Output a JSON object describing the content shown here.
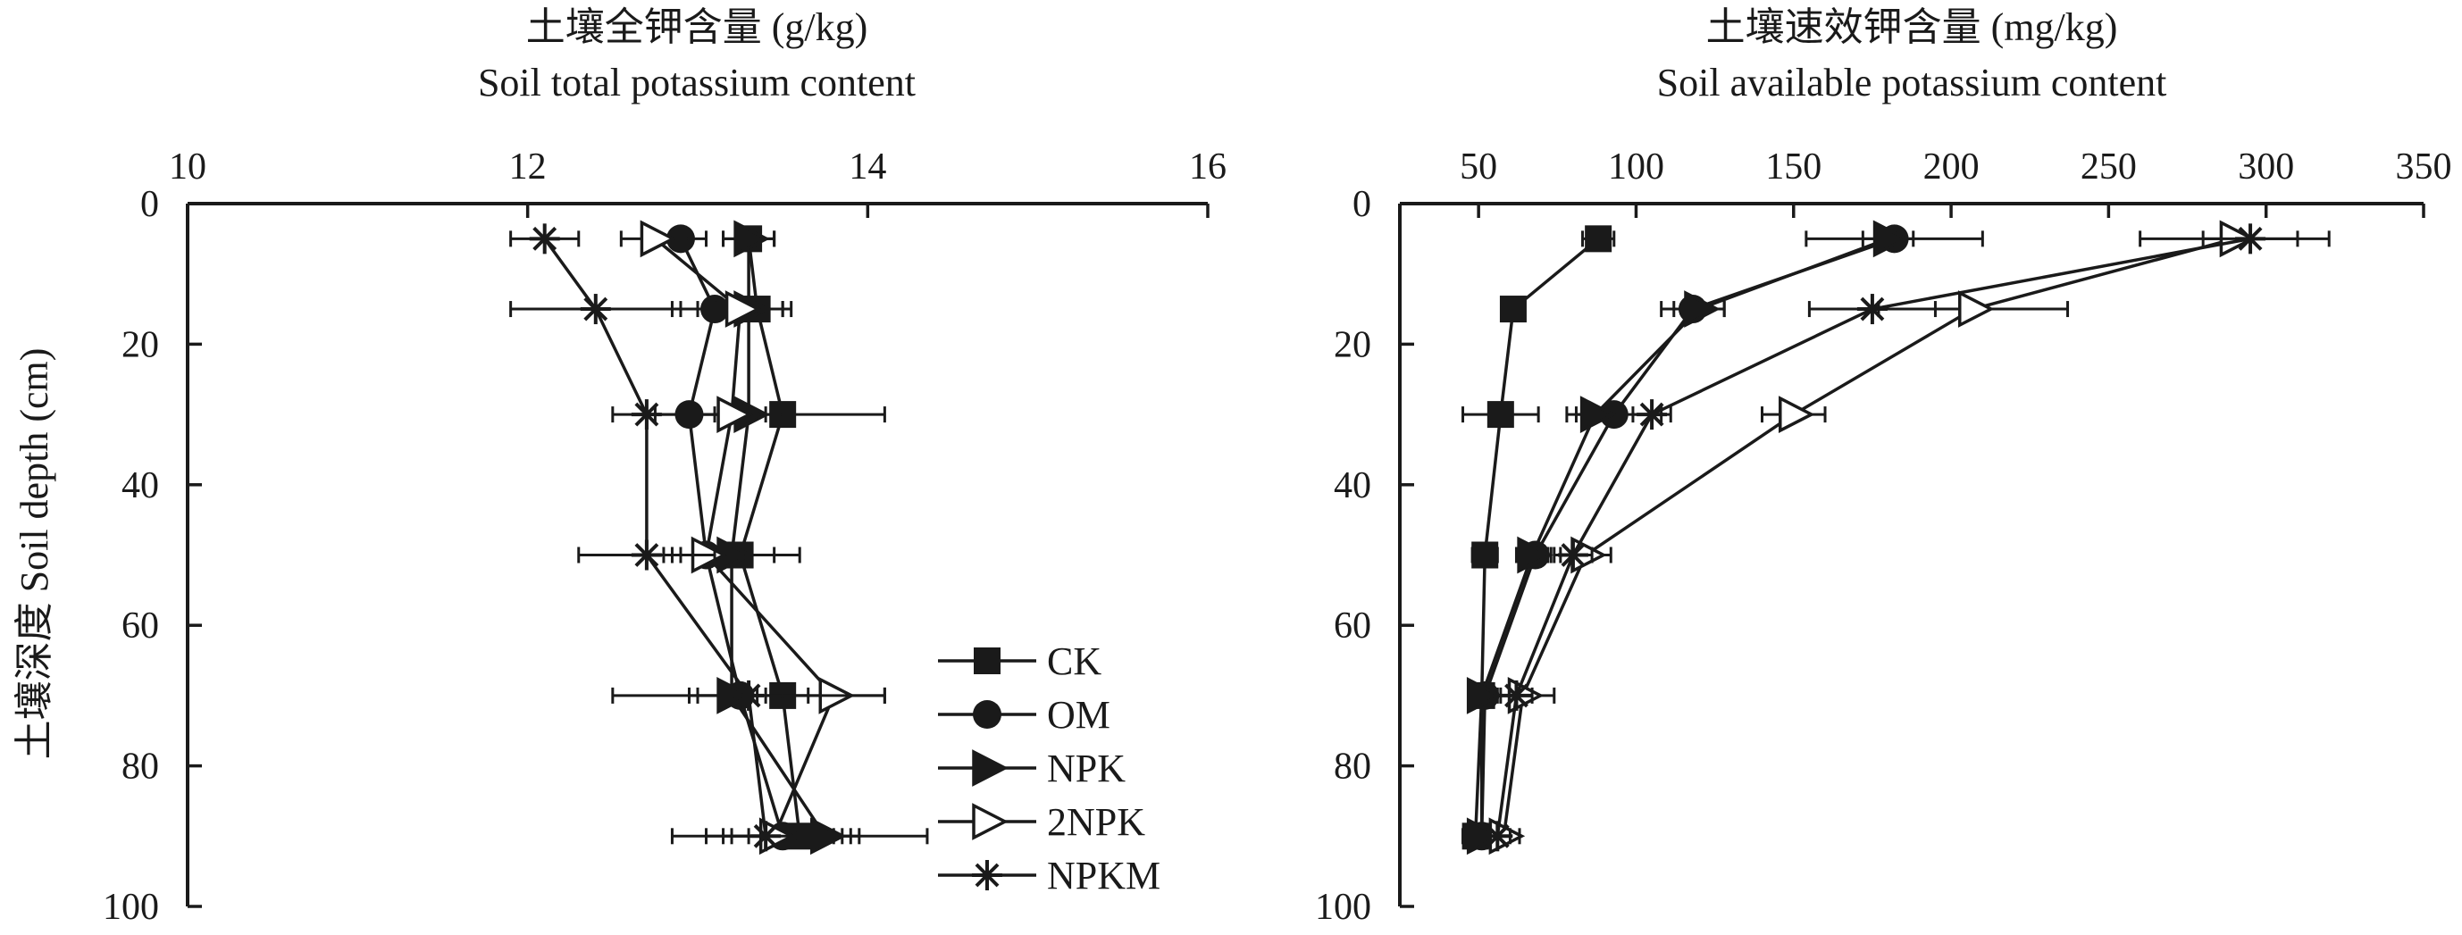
{
  "chart_data": [
    {
      "type": "line",
      "title_cn": "土壤全钾含量 (g/kg)",
      "title_en": "Soil total potassium content",
      "ylabel": "土壤深度 Soil depth (cm)",
      "xlim": [
        10,
        16
      ],
      "ylim": [
        0,
        100
      ],
      "y_inverted": true,
      "x_position": "top",
      "xticks": [
        10,
        12,
        14,
        16
      ],
      "yticks": [
        0,
        20,
        40,
        60,
        80,
        100
      ],
      "depths": [
        5,
        15,
        30,
        50,
        70,
        90
      ],
      "legend": {
        "placement": "bottom-right",
        "entries": [
          "CK",
          "OM",
          "NPK",
          "2NPK",
          "NPKM"
        ]
      },
      "series": [
        {
          "name": "CK",
          "marker": "square",
          "x": [
            13.3,
            13.35,
            13.5,
            13.25,
            13.5,
            13.6
          ],
          "err": [
            0.15,
            0.2,
            0.6,
            0.2,
            0.15,
            0.3
          ]
        },
        {
          "name": "OM",
          "marker": "circle",
          "x": [
            12.9,
            13.1,
            12.95,
            13.05,
            13.25,
            13.5
          ],
          "err": [
            0.15,
            0.25,
            0.2,
            0.2,
            0.3,
            0.3
          ]
        },
        {
          "name": "NPK",
          "marker": "triangle-right",
          "x": [
            13.3,
            13.3,
            13.3,
            13.2,
            13.2,
            13.75
          ],
          "err": [
            0.15,
            0.2,
            0.2,
            0.4,
            0.2,
            0.6
          ]
        },
        {
          "name": "2NPK",
          "marker": "triangle-right-open",
          "x": [
            12.75,
            13.25,
            13.2,
            13.05,
            13.8,
            13.45
          ],
          "err": [
            0.2,
            0.25,
            0.2,
            0.15,
            0.3,
            0.4
          ]
        },
        {
          "name": "NPKM",
          "marker": "asterisk",
          "x": [
            12.1,
            12.4,
            12.7,
            12.7,
            13.3,
            13.4
          ],
          "err": [
            0.2,
            0.5,
            0.2,
            0.4,
            0.8,
            0.55
          ]
        }
      ]
    },
    {
      "type": "line",
      "title_cn": "土壤速效钾含量 (mg/kg)",
      "title_en": "Soil available potassium content",
      "ylabel": "",
      "xlim": [
        25,
        350
      ],
      "ylim": [
        0,
        100
      ],
      "y_inverted": true,
      "x_position": "top",
      "xticks": [
        50,
        100,
        150,
        200,
        250,
        300,
        350
      ],
      "yticks": [
        0,
        20,
        40,
        60,
        80,
        100
      ],
      "depths": [
        5,
        15,
        30,
        50,
        70,
        90
      ],
      "series": [
        {
          "name": "CK",
          "marker": "square",
          "x": [
            88,
            61,
            57,
            52,
            51,
            49
          ],
          "err": [
            5,
            3,
            12,
            4,
            3,
            4
          ]
        },
        {
          "name": "OM",
          "marker": "circle",
          "x": [
            182,
            118,
            93,
            68,
            52,
            51
          ],
          "err": [
            28,
            10,
            15,
            5,
            4,
            3
          ]
        },
        {
          "name": "NPK",
          "marker": "triangle-right",
          "x": [
            180,
            120,
            87,
            67,
            51,
            51
          ],
          "err": [
            8,
            8,
            6,
            5,
            4,
            3
          ]
        },
        {
          "name": "2NPK",
          "marker": "triangle-right-open",
          "x": [
            290,
            207,
            150,
            84,
            64,
            58
          ],
          "err": [
            30,
            30,
            10,
            8,
            10,
            5
          ]
        },
        {
          "name": "NPKM",
          "marker": "asterisk",
          "x": [
            295,
            175,
            105,
            80,
            62,
            56
          ],
          "err": [
            15,
            20,
            6,
            6,
            5,
            4
          ]
        }
      ]
    }
  ]
}
